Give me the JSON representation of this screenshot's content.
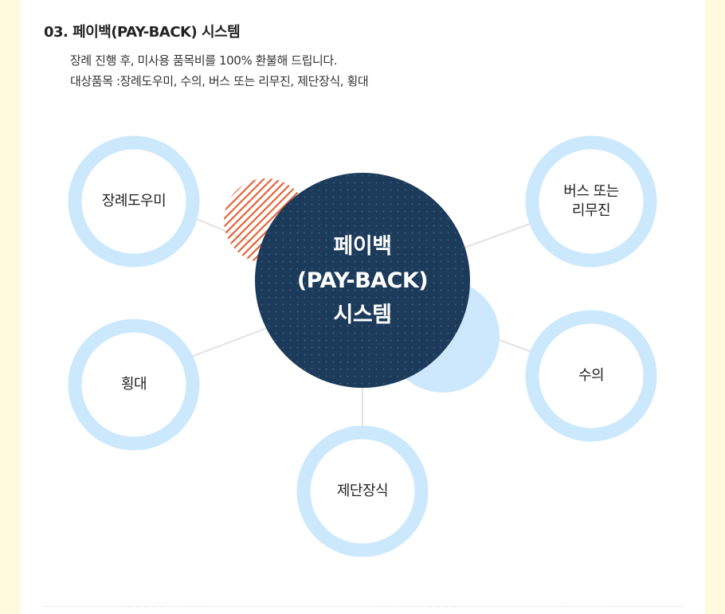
{
  "heading": "03. 페이백(PAY-BACK) 시스템",
  "description": {
    "line1": "장례 진행 후, 미사용 품목비를 100% 환불해 드립니다.",
    "line2": "대상품목 :장례도우미, 수의, 버스 또는 리무진, 제단장식, 횡대"
  },
  "center": {
    "line1": "페이백",
    "line2": "(PAY-BACK)",
    "line3": "시스템"
  },
  "nodes": {
    "funeral_helper": "장례도우미",
    "bus_line1": "버스 또는",
    "bus_line2": "리무진",
    "crossbeam": "횡대",
    "shroud": "수의",
    "altar": "제단장식"
  },
  "colors": {
    "background": "#fff9de",
    "ring": "#cce8fc",
    "center_circle": "#1c3a5a",
    "accent_circle": "#cde8fc",
    "hatch": "#e2653a",
    "connector": "#e0e0e0"
  }
}
